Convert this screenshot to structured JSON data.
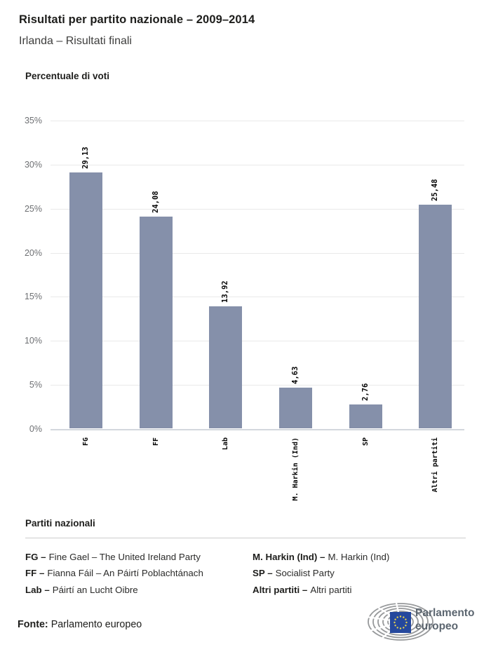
{
  "header": {
    "title": "Risultati per partito nazionale – 2009–2014",
    "subtitle": "Irlanda – Risultati finali"
  },
  "chart": {
    "axis_title": "Percentuale di voti",
    "y_ticks": [
      "35%",
      "30%",
      "25%",
      "20%",
      "15%",
      "10%",
      "5%",
      "0%"
    ]
  },
  "chart_data": {
    "type": "bar",
    "title": "Risultati per partito nazionale – 2009–2014",
    "subtitle": "Irlanda – Risultati finali",
    "ylabel": "Percentuale di voti",
    "categories": [
      "FG",
      "FF",
      "Lab",
      "M. Harkin (Ind)",
      "SP",
      "Altri partiti"
    ],
    "values": [
      29.13,
      24.08,
      13.92,
      4.63,
      2.76,
      25.48
    ],
    "value_labels": [
      "29,13",
      "24,08",
      "13,92",
      "4,63",
      "2,76",
      "25,48"
    ],
    "ylim": [
      0,
      35
    ],
    "ytick_step": 5,
    "grid": true,
    "legend_position": "bottom",
    "bar_color": "#8590aa"
  },
  "legend": {
    "title": "Partiti nazionali",
    "columns": [
      [
        {
          "abbr": "FG –",
          "name": "Fine Gael – The United Ireland Party"
        },
        {
          "abbr": "FF –",
          "name": "Fianna Fáil – An Páirtí Poblachtánach"
        },
        {
          "abbr": "Lab –",
          "name": "Páirtí an Lucht Oibre"
        }
      ],
      [
        {
          "abbr": "M. Harkin (Ind) –",
          "name": "M. Harkin (Ind)"
        },
        {
          "abbr": "SP –",
          "name": "Socialist Party"
        },
        {
          "abbr": "Altri partiti –",
          "name": "Altri partiti"
        }
      ]
    ]
  },
  "footer": {
    "source_label": "Fonte:",
    "source_value": "Parlamento europeo",
    "logo_line1": "Parlamento",
    "logo_line2": "europeo"
  },
  "colors": {
    "bar": "#8590aa",
    "gridline": "#e9e9e9",
    "axis_line": "#d3d7dd",
    "tick_text": "#6e7073",
    "eu_blue": "#25489d",
    "eu_stars": "#e8d44d",
    "logo_gray": "#97999b",
    "logo_text": "#5c6670"
  }
}
